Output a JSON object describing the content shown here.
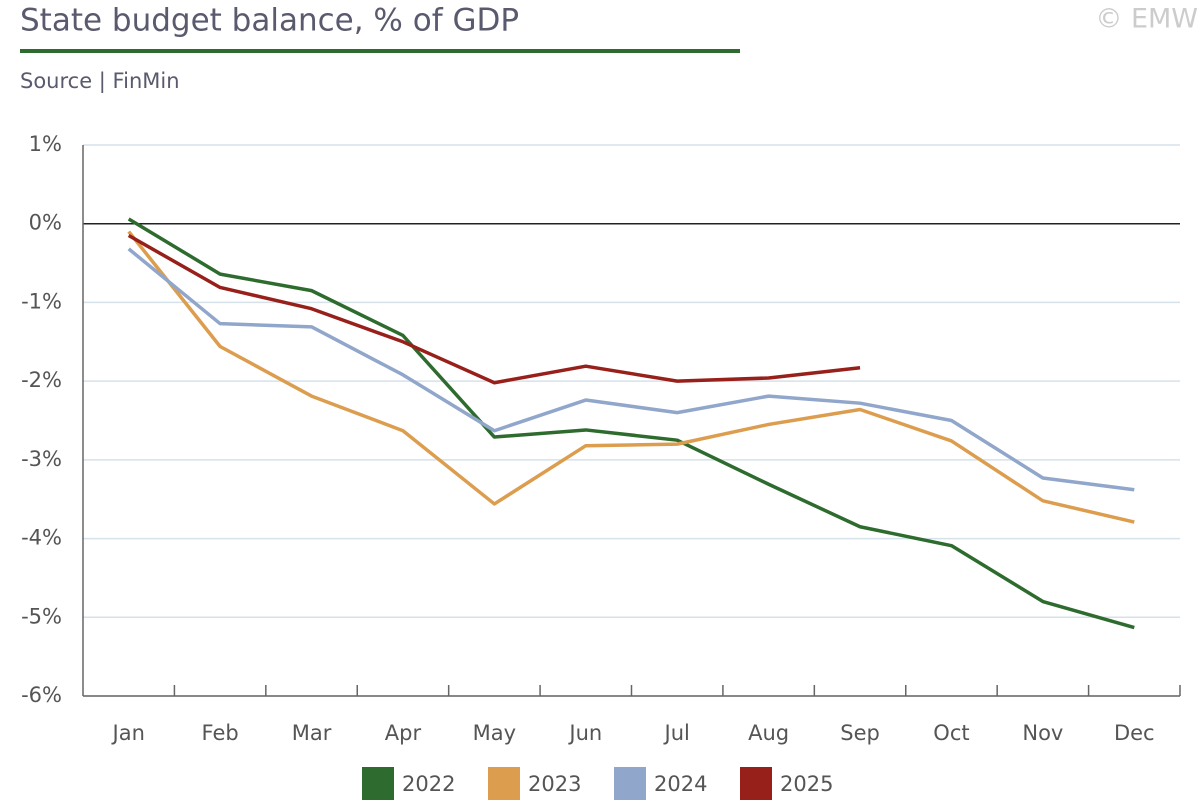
{
  "chart_data": {
    "type": "line",
    "title": "State budget balance, % of GDP",
    "subtitle": "Source | FinMin",
    "credit": "© EMW",
    "categories": [
      "Jan",
      "Feb",
      "Mar",
      "Apr",
      "May",
      "Jun",
      "Jul",
      "Aug",
      "Sep",
      "Oct",
      "Nov",
      "Dec"
    ],
    "series": [
      {
        "name": "2022",
        "color": "#2e6b2e",
        "values": [
          0.06,
          -0.64,
          -0.85,
          -1.42,
          -2.71,
          -2.62,
          -2.75,
          -3.31,
          -3.85,
          -4.09,
          -4.8,
          -5.13
        ]
      },
      {
        "name": "2023",
        "color": "#dc9d4e",
        "values": [
          -0.1,
          -1.56,
          -2.19,
          -2.63,
          -3.56,
          -2.82,
          -2.8,
          -2.55,
          -2.36,
          -2.76,
          -3.52,
          -3.79
        ]
      },
      {
        "name": "2024",
        "color": "#91a6cb",
        "values": [
          -0.32,
          -1.27,
          -1.31,
          -1.92,
          -2.63,
          -2.24,
          -2.4,
          -2.19,
          -2.28,
          -2.5,
          -3.23,
          -3.38
        ]
      },
      {
        "name": "2025",
        "color": "#98201a",
        "values": [
          -0.15,
          -0.81,
          -1.08,
          -1.5,
          -2.02,
          -1.81,
          -2.0,
          -1.96,
          -1.83,
          null,
          null,
          null
        ]
      }
    ],
    "ylim": [
      -6,
      1
    ],
    "yticks": [
      {
        "value": 1,
        "label": "1%"
      },
      {
        "value": 0,
        "label": "0%"
      },
      {
        "value": -1,
        "label": "-1%"
      },
      {
        "value": -2,
        "label": "-2%"
      },
      {
        "value": -3,
        "label": "-3%"
      },
      {
        "value": -4,
        "label": "-4%"
      },
      {
        "value": -5,
        "label": "-5%"
      },
      {
        "value": -6,
        "label": "-6%"
      }
    ],
    "grid": true,
    "legend": "bottom"
  }
}
